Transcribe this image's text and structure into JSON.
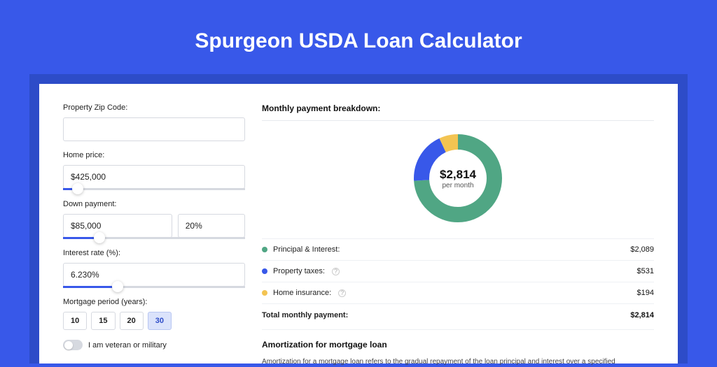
{
  "page": {
    "title": "Spurgeon USDA Loan Calculator",
    "bg_color": "#3858e9",
    "card_outer_color": "#2d4cc8",
    "card_bg": "#ffffff"
  },
  "form": {
    "zip": {
      "label": "Property Zip Code:",
      "value": ""
    },
    "home_price": {
      "label": "Home price:",
      "value": "$425,000",
      "slider_pct": 8
    },
    "down_payment": {
      "label": "Down payment:",
      "amount": "$85,000",
      "percent": "20%",
      "slider_pct": 20
    },
    "interest_rate": {
      "label": "Interest rate (%):",
      "value": "6.230%",
      "slider_pct": 30
    },
    "mortgage_period": {
      "label": "Mortgage period (years):",
      "options": [
        "10",
        "15",
        "20",
        "30"
      ],
      "selected": "30"
    },
    "veteran_toggle": {
      "label": "I am veteran or military",
      "value": false
    }
  },
  "breakdown": {
    "heading": "Monthly payment breakdown:",
    "donut": {
      "amount": "$2,814",
      "sub": "per month",
      "slices": [
        {
          "label": "Principal & Interest:",
          "value": "$2,089",
          "pct": 74,
          "color": "#50a684"
        },
        {
          "label": "Property taxes:",
          "value": "$531",
          "pct": 19,
          "color": "#3858e9",
          "info": true
        },
        {
          "label": "Home insurance:",
          "value": "$194",
          "pct": 7,
          "color": "#f3c452",
          "info": true
        }
      ]
    },
    "total": {
      "label": "Total monthly payment:",
      "value": "$2,814"
    }
  },
  "amortization": {
    "heading": "Amortization for mortgage loan",
    "body": "Amortization for a mortgage loan refers to the gradual repayment of the loan principal and interest over a specified"
  }
}
